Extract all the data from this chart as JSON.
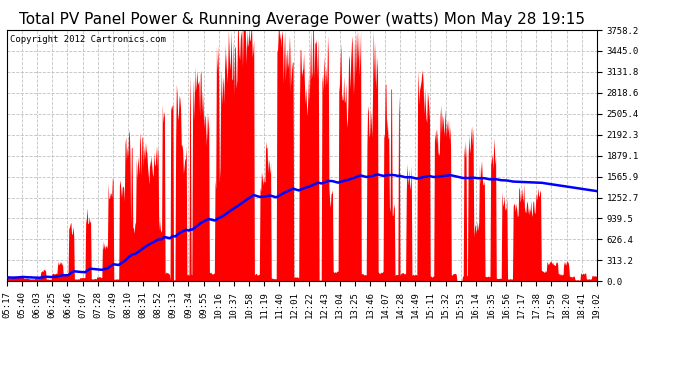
{
  "title": "Total PV Panel Power & Running Average Power (watts) Mon May 28 19:15",
  "copyright": "Copyright 2012 Cartronics.com",
  "ymax": 3758.2,
  "yticks": [
    0.0,
    313.2,
    626.4,
    939.5,
    1252.7,
    1565.9,
    1879.1,
    2192.3,
    2505.4,
    2818.6,
    3131.8,
    3445.0,
    3758.2
  ],
  "ytick_labels": [
    "0.0",
    "313.2",
    "626.4",
    "939.5",
    "1252.7",
    "1565.9",
    "1879.1",
    "2192.3",
    "2505.4",
    "2818.6",
    "3131.8",
    "3445.0",
    "3758.2"
  ],
  "xtick_labels": [
    "05:17",
    "05:40",
    "06:03",
    "06:25",
    "06:46",
    "07:07",
    "07:28",
    "07:49",
    "08:10",
    "08:31",
    "08:52",
    "09:13",
    "09:34",
    "09:55",
    "10:16",
    "10:37",
    "10:58",
    "11:19",
    "11:40",
    "12:01",
    "12:22",
    "12:43",
    "13:04",
    "13:25",
    "13:46",
    "14:07",
    "14:28",
    "14:49",
    "15:11",
    "15:32",
    "15:53",
    "16:14",
    "16:35",
    "16:56",
    "17:17",
    "17:38",
    "17:59",
    "18:20",
    "18:41",
    "19:02"
  ],
  "area_color": "#FF0000",
  "line_color": "#0000FF",
  "background_color": "#FFFFFF",
  "grid_color": "#BBBBBB",
  "title_fontsize": 11,
  "copyright_fontsize": 6.5,
  "tick_fontsize": 6.5,
  "figwidth": 6.9,
  "figheight": 3.75,
  "dpi": 100
}
